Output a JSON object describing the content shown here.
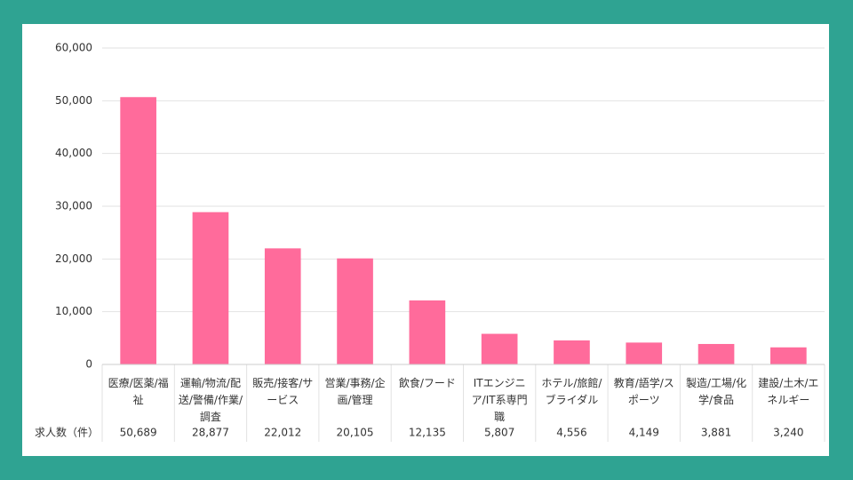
{
  "chart_data": {
    "type": "bar",
    "categories": [
      "医療/医薬/福祉",
      "運輸/物流/配送/警備/作業/調査",
      "販売/接客/サービス",
      "営業/事務/企画/管理",
      "飲食/フード",
      "ITエンジニア/IT系専門職",
      "ホテル/旅館/ブライダル",
      "教育/語学/スポーツ",
      "製造/工場/化学/食品",
      "建設/土木/エネルギー"
    ],
    "values": [
      50689,
      28877,
      22012,
      20105,
      12135,
      5807,
      4556,
      4149,
      3881,
      3240
    ],
    "value_labels": [
      "50,689",
      "28,877",
      "22,012",
      "20,105",
      "12,135",
      "5,807",
      "4,556",
      "4,149",
      "3,881",
      "3,240"
    ],
    "table_label": "求人数（件）",
    "color": "#ff6b9b",
    "ylim": [
      0,
      60000
    ],
    "yticks": [
      0,
      {
        "value": 10000,
        "label": "10,000"
      },
      {
        "value": 20000,
        "label": "20,000"
      },
      {
        "value": 30000,
        "label": "30,000"
      },
      {
        "value": 40000,
        "label": "40,000"
      },
      {
        "value": 50000,
        "label": "50,000"
      },
      {
        "value": 60000,
        "label": "60,000"
      }
    ],
    "grid": true
  }
}
